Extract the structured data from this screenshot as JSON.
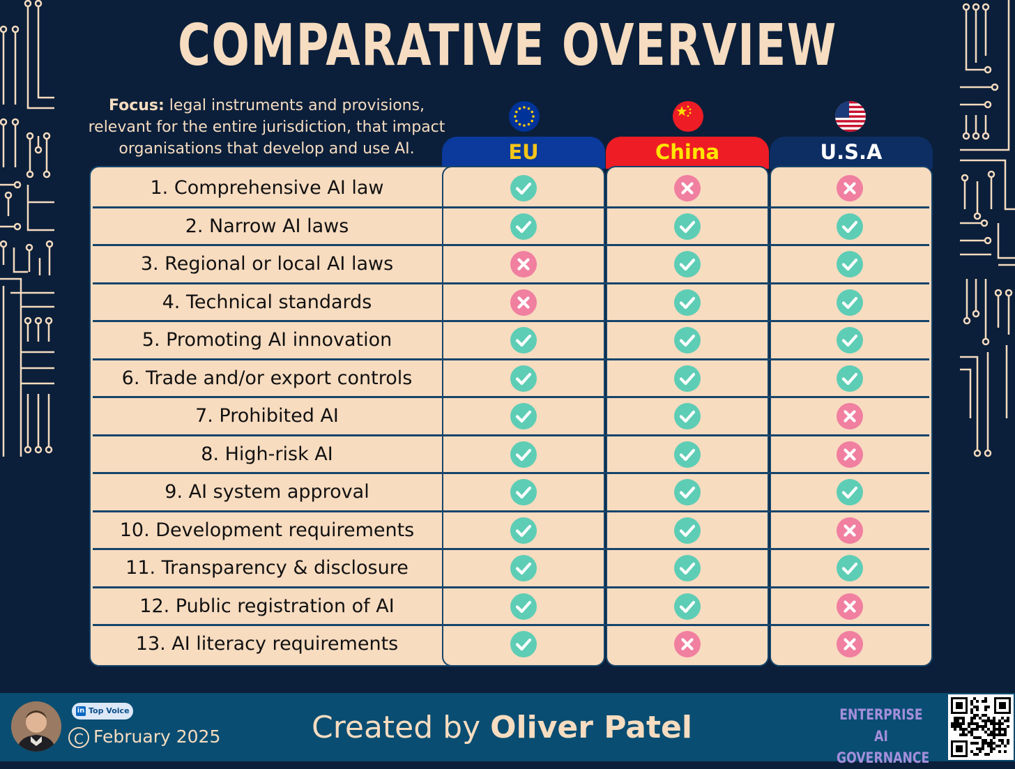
{
  "title": "COMPARATIVE OVERVIEW",
  "focus": {
    "label": "Focus:",
    "text": "legal instruments and provisions, relevant for the entire jurisdiction, that impact organisations that develop and use AI."
  },
  "columns": [
    {
      "name": "EU",
      "flag": "eu-flag-icon",
      "bg": "#0b3a9c",
      "fg": "#f5c518"
    },
    {
      "name": "China",
      "flag": "china-flag-icon",
      "bg": "#ee1c25",
      "fg": "#ffe600"
    },
    {
      "name": "U.S.A",
      "flag": "usa-flag-icon",
      "bg": "#0d2e63",
      "fg": "#ffffff"
    }
  ],
  "rows": [
    {
      "label": "1. Comprehensive AI law",
      "values": [
        true,
        false,
        false
      ]
    },
    {
      "label": "2. Narrow AI laws",
      "values": [
        true,
        true,
        true
      ]
    },
    {
      "label": "3. Regional or local AI laws",
      "values": [
        false,
        true,
        true
      ]
    },
    {
      "label": "4. Technical standards",
      "values": [
        false,
        true,
        true
      ]
    },
    {
      "label": "5. Promoting AI innovation",
      "values": [
        true,
        true,
        true
      ]
    },
    {
      "label": "6. Trade and/or export controls",
      "values": [
        true,
        true,
        true
      ]
    },
    {
      "label": "7. Prohibited AI",
      "values": [
        true,
        true,
        false
      ]
    },
    {
      "label": "8. High-risk AI",
      "values": [
        true,
        true,
        false
      ]
    },
    {
      "label": "9. AI system approval",
      "values": [
        true,
        true,
        true
      ]
    },
    {
      "label": "10. Development requirements",
      "values": [
        true,
        true,
        false
      ]
    },
    {
      "label": "11. Transparency & disclosure",
      "values": [
        true,
        true,
        true
      ]
    },
    {
      "label": "12. Public registration of AI",
      "values": [
        true,
        true,
        false
      ]
    },
    {
      "label": "13. AI literacy requirements",
      "values": [
        true,
        false,
        false
      ]
    }
  ],
  "colors": {
    "check": "#5ecdb5",
    "cross": "#f07fa0",
    "cell_bg": "#f8dcc0",
    "background": "#0b1f3a",
    "footer_bg": "#094d72",
    "accent_text": "#f6dcc0"
  },
  "footer": {
    "badge": "Top Voice",
    "badge_icon": "linkedin-icon",
    "copyright_symbol": "C",
    "date": "February 2025",
    "created_prefix": "Created by",
    "author": "Oliver Patel",
    "brand_line1": "ENTERPRISE",
    "brand_line2": "AI GOVERNANCE",
    "qr_icon": "qr-code-icon",
    "avatar_icon": "author-avatar-icon"
  }
}
